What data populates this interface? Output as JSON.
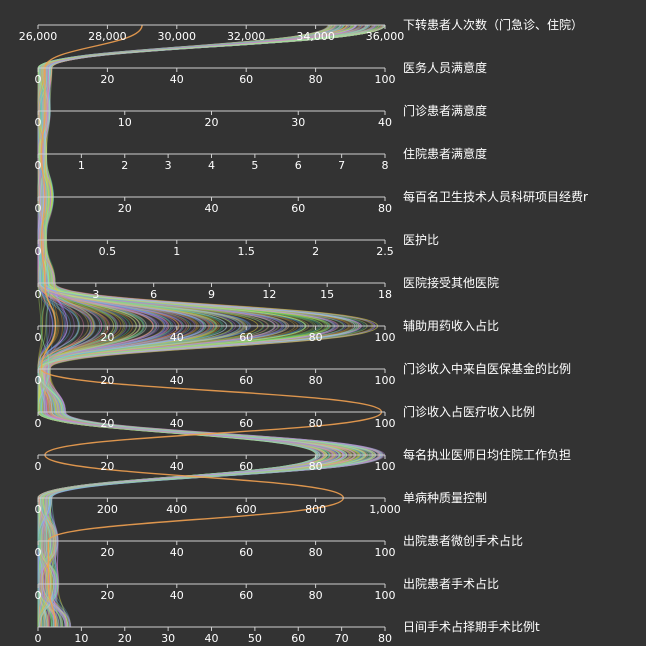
{
  "chart_data": {
    "type": "parallel",
    "layout": "vertical-stacked-axes",
    "axes": [
      {
        "name": "下转患者人次数（门急诊、住院）",
        "min": 26000,
        "max": 36000,
        "ticks": [
          "26,000",
          "28,000",
          "30,000",
          "32,000",
          "34,000",
          "36,000"
        ]
      },
      {
        "name": "医务人员满意度",
        "min": 0,
        "max": 100,
        "ticks": [
          "0",
          "20",
          "40",
          "60",
          "80",
          "100"
        ]
      },
      {
        "name": "门诊患者满意度",
        "min": 0,
        "max": 40,
        "ticks": [
          "0",
          "10",
          "20",
          "30",
          "40"
        ]
      },
      {
        "name": "住院患者满意度",
        "min": 0,
        "max": 8,
        "ticks": [
          "0",
          "1",
          "2",
          "3",
          "4",
          "5",
          "6",
          "7",
          "8"
        ]
      },
      {
        "name": "每百名卫生技术人员科研项目经费r",
        "min": 0,
        "max": 80,
        "ticks": [
          "0",
          "20",
          "40",
          "60",
          "80"
        ]
      },
      {
        "name": "医护比",
        "min": 0,
        "max": 2.5,
        "ticks": [
          "0",
          "0.5",
          "1",
          "1.5",
          "2",
          "2.5"
        ]
      },
      {
        "name": "医院接受其他医院",
        "min": 0,
        "max": 18,
        "ticks": [
          "0",
          "3",
          "6",
          "9",
          "12",
          "15",
          "18"
        ]
      },
      {
        "name": "辅助用药收入占比",
        "min": 0,
        "max": 100,
        "ticks": [
          "0",
          "20",
          "40",
          "60",
          "80",
          "100"
        ]
      },
      {
        "name": "门诊收入中来自医保基金的比例",
        "min": 0,
        "max": 100,
        "ticks": [
          "0",
          "20",
          "40",
          "60",
          "80",
          "100"
        ]
      },
      {
        "name": "门诊收入占医疗收入比例",
        "min": 0,
        "max": 100,
        "ticks": [
          "0",
          "20",
          "40",
          "60",
          "80",
          "100"
        ]
      },
      {
        "name": "每名执业医师日均住院工作负担",
        "min": 0,
        "max": 100,
        "ticks": [
          "0",
          "20",
          "40",
          "60",
          "80",
          "100"
        ]
      },
      {
        "name": "单病种质量控制",
        "min": 0,
        "max": 1000,
        "ticks": [
          "0",
          "200",
          "400",
          "600",
          "800",
          "1,000"
        ]
      },
      {
        "name": "出院患者微创手术占比",
        "min": 0,
        "max": 100,
        "ticks": [
          "0",
          "20",
          "40",
          "60",
          "80",
          "100"
        ]
      },
      {
        "name": "出院患者手术占比",
        "min": 0,
        "max": 100,
        "ticks": [
          "0",
          "20",
          "40",
          "60",
          "80",
          "100"
        ]
      },
      {
        "name": "日间手术占择期手术比例t",
        "min": 0,
        "max": 80,
        "ticks": [
          "0",
          "10",
          "20",
          "30",
          "40",
          "50",
          "60",
          "70",
          "80"
        ]
      }
    ],
    "series_colors": [
      "#f5a623",
      "#e8c84a",
      "#9be15d",
      "#4cd9a0",
      "#5ab0f0",
      "#8f7cf0",
      "#c77dff",
      "#ff7eb3",
      "#7ee8fa",
      "#b8f060"
    ],
    "highlight_color": "#f0a050",
    "grid": false,
    "legend": "none"
  }
}
